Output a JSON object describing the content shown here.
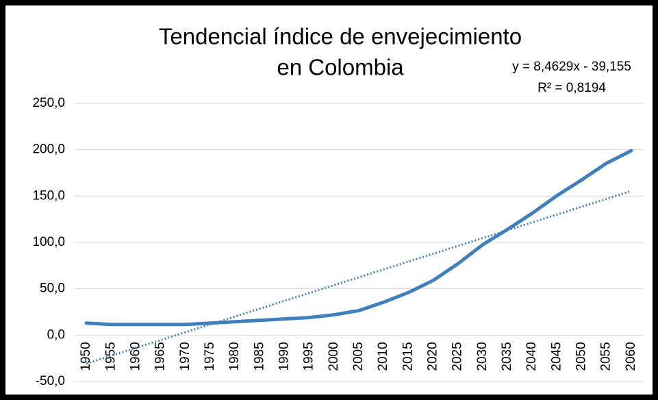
{
  "chart_data": {
    "type": "line",
    "title": [
      "Tendencial índice de envejecimiento",
      "en Colombia"
    ],
    "categories": [
      "1950",
      "1955",
      "1960",
      "1965",
      "1970",
      "1975",
      "1980",
      "1985",
      "1990",
      "1995",
      "2000",
      "2005",
      "2010",
      "2015",
      "2020",
      "2025",
      "2030",
      "2035",
      "2040",
      "2045",
      "2050",
      "2055",
      "2060"
    ],
    "series": [
      {
        "color": "#3f7fbb",
        "values": [
          13,
          11.5,
          11.5,
          11.5,
          11.5,
          13,
          14.5,
          16,
          17.5,
          19,
          22,
          26.5,
          35.5,
          46,
          59,
          77,
          97.5,
          114,
          131.5,
          150.5,
          167.5,
          185.5,
          199
        ]
      }
    ],
    "trendline": {
      "slope": 8.4629,
      "intercept": -39.155,
      "equation": "y = 8,4629x - 39,155",
      "r_squared": "R² = 0,8194",
      "color": "#3f7fbb",
      "style": "dotted"
    },
    "ylim": [
      -50,
      250
    ],
    "yticks": [
      {
        "value": -50,
        "label": "-50,0"
      },
      {
        "value": 0,
        "label": "0,0"
      },
      {
        "value": 50,
        "label": "50,0"
      },
      {
        "value": 100,
        "label": "100,0"
      },
      {
        "value": 150,
        "label": "150,0"
      },
      {
        "value": 200,
        "label": "200,0"
      },
      {
        "value": 250,
        "label": "250,0"
      }
    ],
    "grid": true
  }
}
